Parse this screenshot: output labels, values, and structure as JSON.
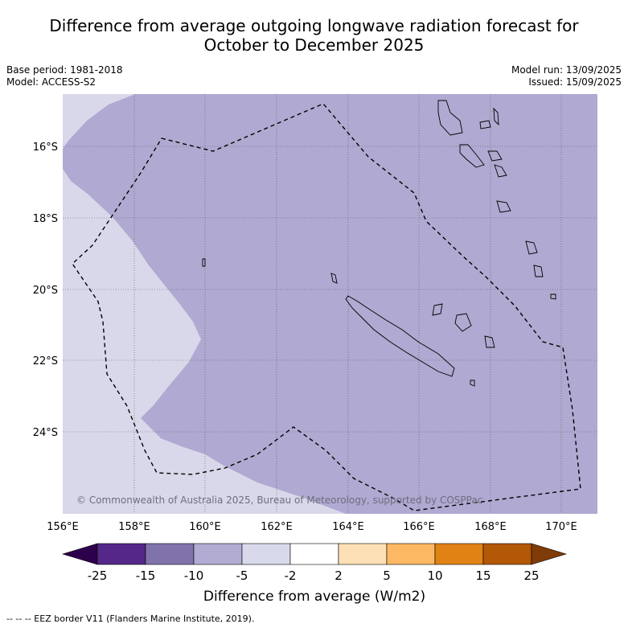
{
  "title_line1": "Difference from average outgoing longwave radiation forecast for",
  "title_line2": "October to December 2025",
  "meta_left": [
    "Base period: 1981-2018",
    "Model: ACCESS-S2"
  ],
  "meta_right": [
    "Model run: 13/09/2025",
    "Issued: 15/09/2025"
  ],
  "map": {
    "lon_ticks": [
      "156°E",
      "158°E",
      "160°E",
      "162°E",
      "164°E",
      "166°E",
      "168°E",
      "170°E"
    ],
    "lat_ticks": [
      "16°S",
      "18°S",
      "20°S",
      "22°S",
      "24°S"
    ],
    "copyright": "© Commonwealth of Australia 2025, Bureau of Meteorology, supported by COSPPac",
    "colors": {
      "main_fill": "#b0a9d1",
      "light_fill": "#d8d8ea"
    }
  },
  "colorbar": {
    "tick_labels": [
      "-25",
      "-15",
      "-10",
      "-5",
      "-2",
      "2",
      "5",
      "10",
      "15",
      "25"
    ],
    "colors": [
      "#2d004b",
      "#542788",
      "#8073ac",
      "#b2abd2",
      "#d8daeb",
      "#ffffff",
      "#fee0b6",
      "#fdb863",
      "#e08214",
      "#b35806",
      "#7f3b08"
    ],
    "title": "Difference from average (W/m2)"
  },
  "footer": "--  --  -- EEZ border V11 (Flanders Marine Institute, 2019)."
}
